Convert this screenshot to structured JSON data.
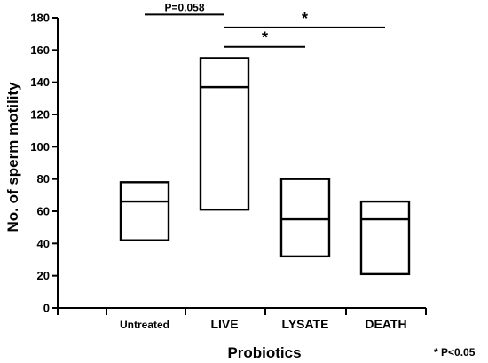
{
  "chart_data": {
    "type": "box",
    "xlabel": "Probiotics",
    "ylabel": "No. of sperm motility",
    "ylim": [
      0,
      180
    ],
    "y_ticks": [
      0,
      20,
      40,
      60,
      80,
      100,
      120,
      140,
      160,
      180
    ],
    "categories": [
      "Untreated",
      "LIVE",
      "LYSATE",
      "DEATH"
    ],
    "boxes": [
      {
        "category": "Untreated",
        "low": 42,
        "median": 66,
        "high": 78
      },
      {
        "category": "LIVE",
        "low": 61,
        "median": 137,
        "high": 155
      },
      {
        "category": "LYSATE",
        "low": 32,
        "median": 55,
        "high": 80
      },
      {
        "category": "DEATH",
        "low": 21,
        "median": 55,
        "high": 66
      }
    ],
    "annotations": [
      {
        "from": "Untreated",
        "to": "LIVE",
        "y": 182,
        "label": "P=0.058"
      },
      {
        "from": "LIVE",
        "to": "DEATH",
        "y": 174,
        "label": "*"
      },
      {
        "from": "LIVE",
        "to": "LYSATE",
        "y": 162,
        "label": "*"
      }
    ],
    "footnote": "* P<0.05"
  }
}
